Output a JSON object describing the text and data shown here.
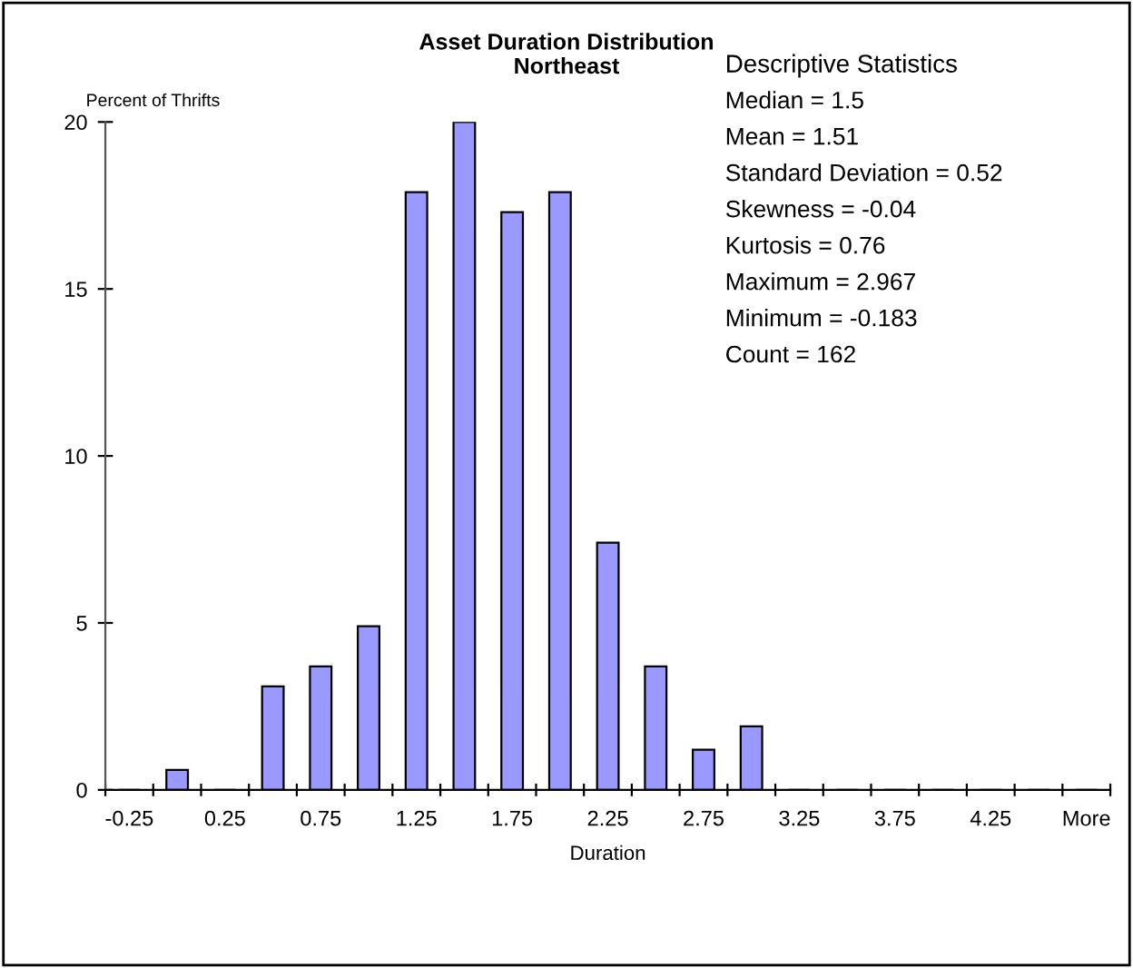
{
  "chart_data": {
    "type": "bar",
    "title": "Asset Duration Distribution",
    "subtitle": "Northeast",
    "xlabel": "Duration",
    "ylabel": "Percent of Thrifts",
    "categories": [
      "-0.25",
      null,
      "0.25",
      null,
      "0.75",
      null,
      "1.25",
      null,
      "1.75",
      null,
      "2.25",
      null,
      "2.75",
      null,
      "3.25",
      null,
      "3.75",
      null,
      "4.25",
      null,
      "More"
    ],
    "values": [
      0,
      0.6,
      0,
      3.1,
      3.7,
      4.9,
      17.9,
      20,
      17.3,
      17.9,
      7.4,
      3.7,
      1.2,
      1.9,
      0,
      0,
      0,
      0,
      0,
      0,
      0
    ],
    "color": "#9999ff",
    "ylim": [
      0,
      20
    ],
    "yticks": [
      0,
      5,
      10,
      15,
      20
    ],
    "grid": false,
    "legend": false,
    "annotations": [
      "Descriptive Statistics",
      "Median = 1.5",
      "Mean = 1.51",
      "Standard Deviation = 0.52",
      "Skewness = -0.04",
      "Kurtosis = 0.76",
      "Maximum = 2.967",
      "Minimum = -0.183",
      "Count = 162"
    ]
  }
}
